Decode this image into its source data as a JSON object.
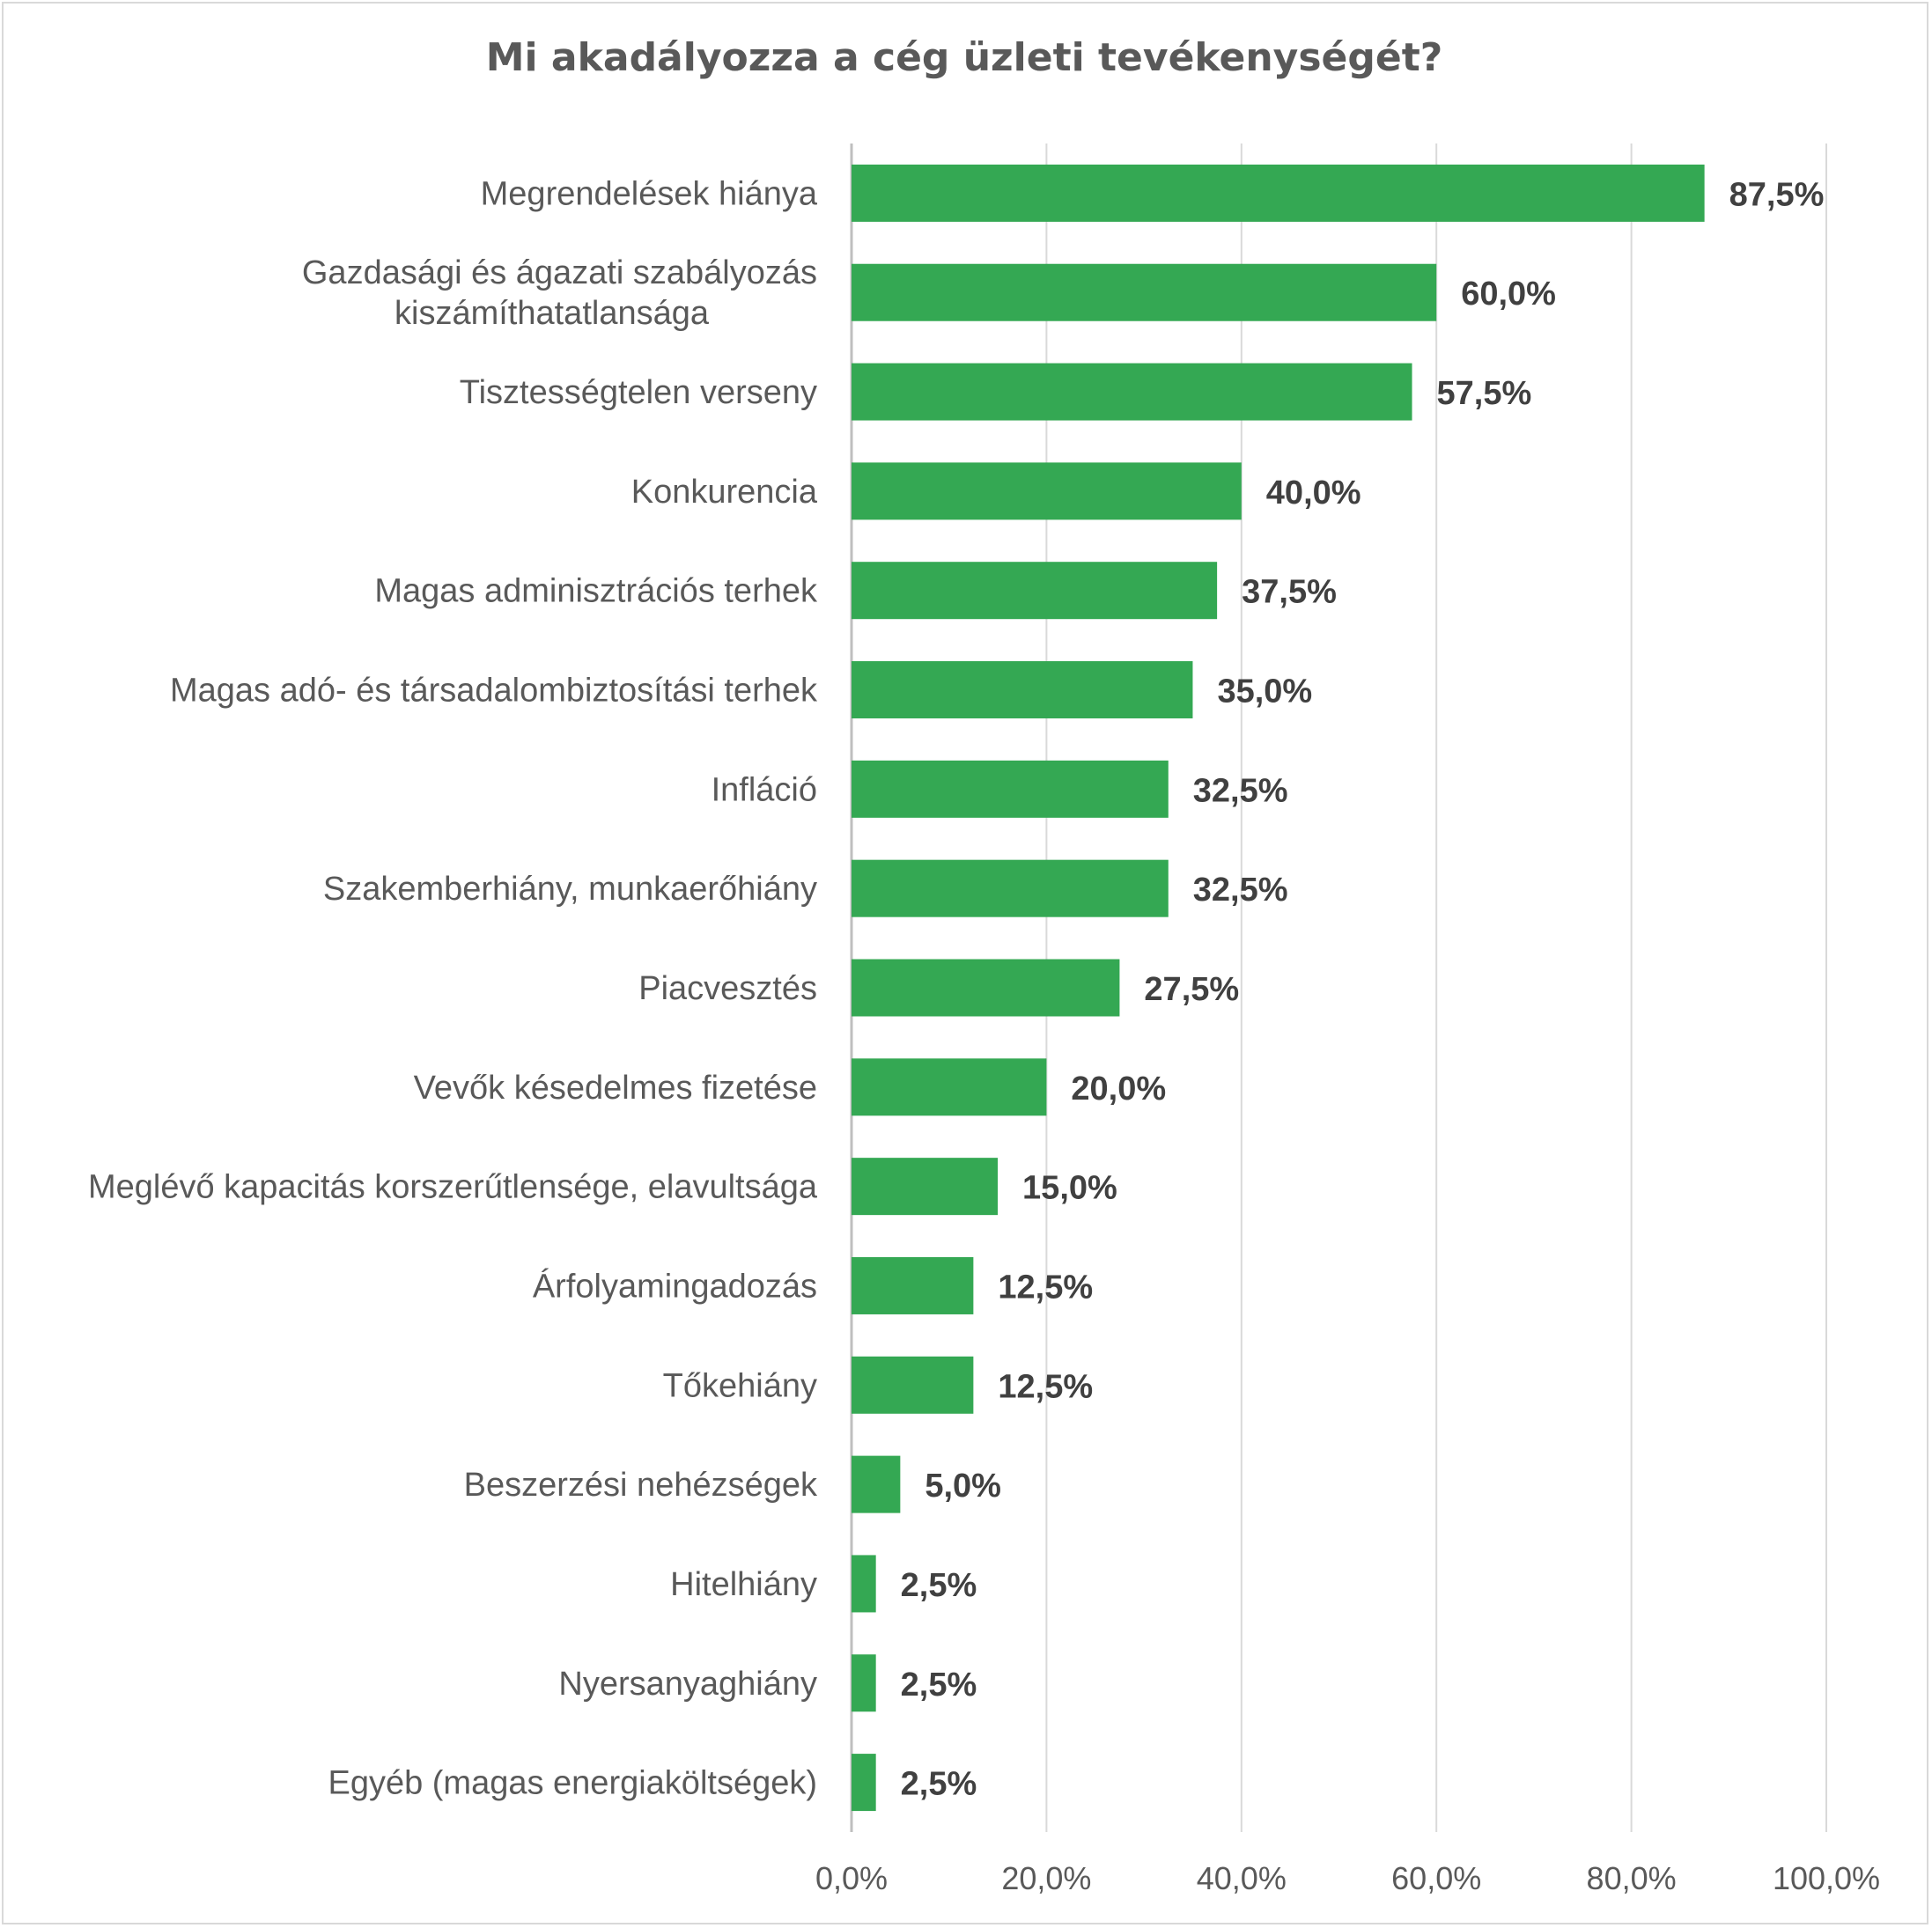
{
  "chart_data": {
    "type": "bar",
    "orientation": "horizontal",
    "title": "Mi akadályozza a cég üzleti tevékenységét?",
    "categories": [
      "Megrendelések hiánya",
      "Gazdasági és ágazati szabályozás kiszámíthatatlansága",
      "Tisztességtelen verseny",
      "Konkurencia",
      "Magas adminisztrációs terhek",
      "Magas adó- és társadalombiztosítási terhek",
      "Infláció",
      "Szakemberhiány, munkaerőhiány",
      "Piacvesztés",
      "Vevők késedelmes fizetése",
      "Meglévő kapacitás korszerűtlensége, elavultsága",
      "Árfolyamingadozás",
      "Tőkehiány",
      "Beszerzési nehézségek",
      "Hitelhiány",
      "Nyersanyaghiány",
      "Egyéb (magas energiaköltségek)"
    ],
    "category_lines": [
      [
        "Megrendelések hiánya"
      ],
      [
        "Gazdasági és ágazati szabályozás",
        "kiszámíthatatlansága"
      ],
      [
        "Tisztességtelen verseny"
      ],
      [
        "Konkurencia"
      ],
      [
        "Magas adminisztrációs terhek"
      ],
      [
        "Magas adó- és társadalombiztosítási terhek"
      ],
      [
        "Infláció"
      ],
      [
        "Szakemberhiány, munkaerőhiány"
      ],
      [
        "Piacvesztés"
      ],
      [
        "Vevők késedelmes fizetése"
      ],
      [
        "Meglévő kapacitás korszerűtlensége, elavultsága"
      ],
      [
        "Árfolyamingadozás"
      ],
      [
        "Tőkehiány"
      ],
      [
        "Beszerzési nehézségek"
      ],
      [
        "Hitelhiány"
      ],
      [
        "Nyersanyaghiány"
      ],
      [
        "Egyéb (magas energiaköltségek)"
      ]
    ],
    "values": [
      87.5,
      60.0,
      57.5,
      40.0,
      37.5,
      35.0,
      32.5,
      32.5,
      27.5,
      20.0,
      15.0,
      12.5,
      12.5,
      5.0,
      2.5,
      2.5,
      2.5
    ],
    "value_labels": [
      "87,5%",
      "60,0%",
      "57,5%",
      "40,0%",
      "37,5%",
      "35,0%",
      "32,5%",
      "32,5%",
      "27,5%",
      "20,0%",
      "15,0%",
      "12,5%",
      "12,5%",
      "5,0%",
      "2,5%",
      "2,5%",
      "2,5%"
    ],
    "xlim": [
      0,
      100
    ],
    "xticks": [
      0,
      20,
      40,
      60,
      80,
      100
    ],
    "xtick_labels": [
      "0,0%",
      "20,0%",
      "40,0%",
      "60,0%",
      "80,0%",
      "100,0%"
    ],
    "xlabel": "",
    "ylabel": "",
    "grid": "vertical",
    "legend": "none",
    "colors": {
      "bar": "#34a853",
      "grid": "#d9d9d9",
      "axis": "#bfbfbf"
    }
  }
}
